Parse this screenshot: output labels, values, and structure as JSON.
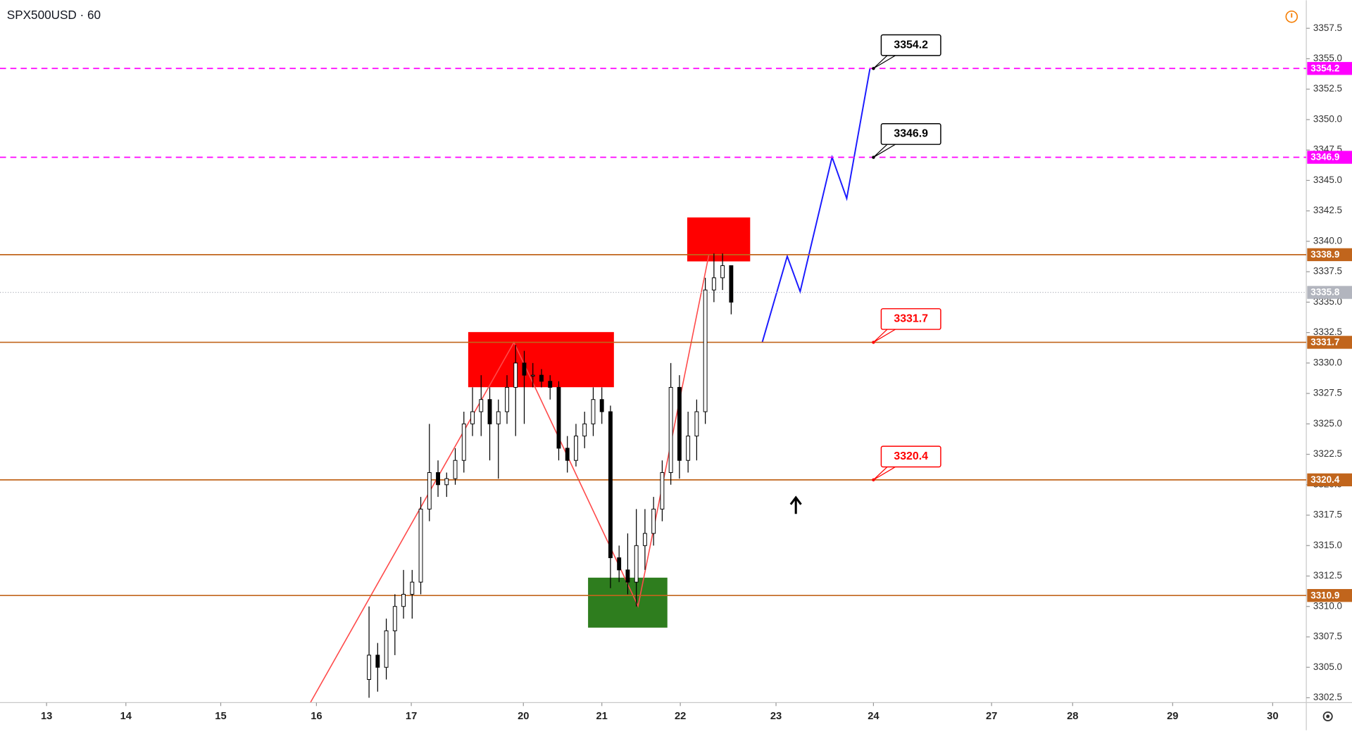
{
  "chart_data": {
    "type": "candlestick",
    "title": "SPX500USD · 60",
    "ylim": [
      3302.1,
      3359.8
    ],
    "yticks": [
      3302.5,
      {
        "value": 3305,
        "label": "3305.0"
      },
      3307.5,
      {
        "value": 3310,
        "label": "3310.0"
      },
      3312.5,
      {
        "value": 3315,
        "label": "3315.0"
      },
      3317.5,
      {
        "value": 3320,
        "label": "3320.0"
      },
      3322.5,
      {
        "value": 3325,
        "label": "3325.0"
      },
      3327.5,
      {
        "value": 3330,
        "label": "3330.0"
      },
      3332.5,
      {
        "value": 3335,
        "label": "3335.0"
      },
      3337.5,
      {
        "value": 3340,
        "label": "3340.0"
      },
      3342.5,
      {
        "value": 3345,
        "label": "3345.0"
      },
      3347.5,
      {
        "value": 3350,
        "label": "3350.0"
      },
      3352.5,
      {
        "value": 3355,
        "label": "3355.0"
      },
      3357.5
    ],
    "xlim": [
      -0.54,
      14.61
    ],
    "xticks": [
      {
        "value": 0,
        "label": "13"
      },
      {
        "value": 0.92,
        "label": "14"
      },
      {
        "value": 2.02,
        "label": "15"
      },
      {
        "value": 3.13,
        "label": "16"
      },
      {
        "value": 4.23,
        "label": "17"
      },
      {
        "value": 5.53,
        "label": "20"
      },
      {
        "value": 6.44,
        "label": "21"
      },
      {
        "value": 7.35,
        "label": "22"
      },
      {
        "value": 8.46,
        "label": "23"
      },
      {
        "value": 9.59,
        "label": "24"
      },
      {
        "value": 10.96,
        "label": "27"
      },
      {
        "value": 11.9,
        "label": "28"
      },
      {
        "value": 13.06,
        "label": "29"
      },
      {
        "value": 14.22,
        "label": "30"
      }
    ],
    "series": {
      "up_color": "#ffffff",
      "down_color": "#000000",
      "x": [
        3.74,
        3.84,
        3.94,
        4.04,
        4.14,
        4.24,
        4.34,
        4.44,
        4.54,
        4.64,
        4.74,
        4.84,
        4.94,
        5.04,
        5.14,
        5.24,
        5.34,
        5.44,
        5.54,
        5.64,
        5.74,
        5.84,
        5.94,
        6.04,
        6.14,
        6.24,
        6.34,
        6.44,
        6.54,
        6.64,
        6.74,
        6.84,
        6.94,
        7.04,
        7.14,
        7.24,
        7.34,
        7.44,
        7.54,
        7.64,
        7.74,
        7.84,
        7.94
      ],
      "open": [
        3304,
        3306,
        3305,
        3308,
        3310,
        3311,
        3312,
        3318,
        3321,
        3320,
        3320.5,
        3322,
        3325,
        3326,
        3327,
        3325,
        3326,
        3328,
        3330,
        3329,
        3329,
        3328.5,
        3328,
        3323,
        3322,
        3324,
        3325,
        3327,
        3326,
        3314,
        3313,
        3312,
        3315,
        3316,
        3318,
        3321,
        3328,
        3322,
        3324,
        3326,
        3336,
        3337,
        3338
      ],
      "high": [
        3310,
        3307,
        3309,
        3311,
        3313,
        3313,
        3319,
        3325,
        3322,
        3321,
        3323,
        3326,
        3328,
        3329,
        3328,
        3327,
        3329,
        3331.5,
        3331,
        3330,
        3329.5,
        3329,
        3328.5,
        3324,
        3325,
        3326,
        3328,
        3328,
        3326.5,
        3315,
        3316,
        3318,
        3318,
        3319,
        3322,
        3330,
        3329,
        3326,
        3327,
        3337,
        3339,
        3339,
        3338
      ],
      "low": [
        3302.5,
        3303,
        3304,
        3306,
        3309,
        3309,
        3311,
        3317,
        3319,
        3319,
        3320,
        3321,
        3324,
        3324,
        3322,
        3320.5,
        3325,
        3324,
        3325,
        3328,
        3328,
        3327,
        3322,
        3321,
        3321.5,
        3323,
        3324,
        3325,
        3311.5,
        3312,
        3311,
        3310,
        3313,
        3315,
        3317,
        3320,
        3320.5,
        3321,
        3322,
        3325,
        3335,
        3336,
        3334
      ],
      "close": [
        3306,
        3305,
        3308,
        3310,
        3311,
        3312,
        3318,
        3321,
        3320,
        3320.5,
        3322,
        3325,
        3326,
        3327,
        3325,
        3326,
        3328,
        3330,
        3329,
        3329,
        3328.5,
        3328,
        3323,
        3322,
        3324,
        3325,
        3327,
        3326,
        3314,
        3313,
        3312,
        3315,
        3316,
        3318,
        3321,
        3328,
        3322,
        3324,
        3326,
        3336,
        3337,
        3338,
        3335
      ]
    },
    "levels": [
      {
        "value": 3354.2,
        "color": "#ff00ff",
        "style": "dashed",
        "callout_color": "#000000"
      },
      {
        "value": 3346.9,
        "color": "#ff00ff",
        "style": "dashed",
        "callout_color": "#000000"
      },
      {
        "value": 3338.9,
        "color": "#c1651c",
        "style": "solid"
      },
      {
        "value": 3331.7,
        "color": "#c1651c",
        "style": "solid",
        "callout_color": "#ff0000"
      },
      {
        "value": 3320.4,
        "color": "#c1651c",
        "style": "solid",
        "callout_color": "#ff0000"
      },
      {
        "value": 3310.9,
        "color": "#c1651c",
        "style": "solid"
      }
    ],
    "last_price": {
      "value": 3335.8,
      "color": "#b2b5be"
    }
  }
}
